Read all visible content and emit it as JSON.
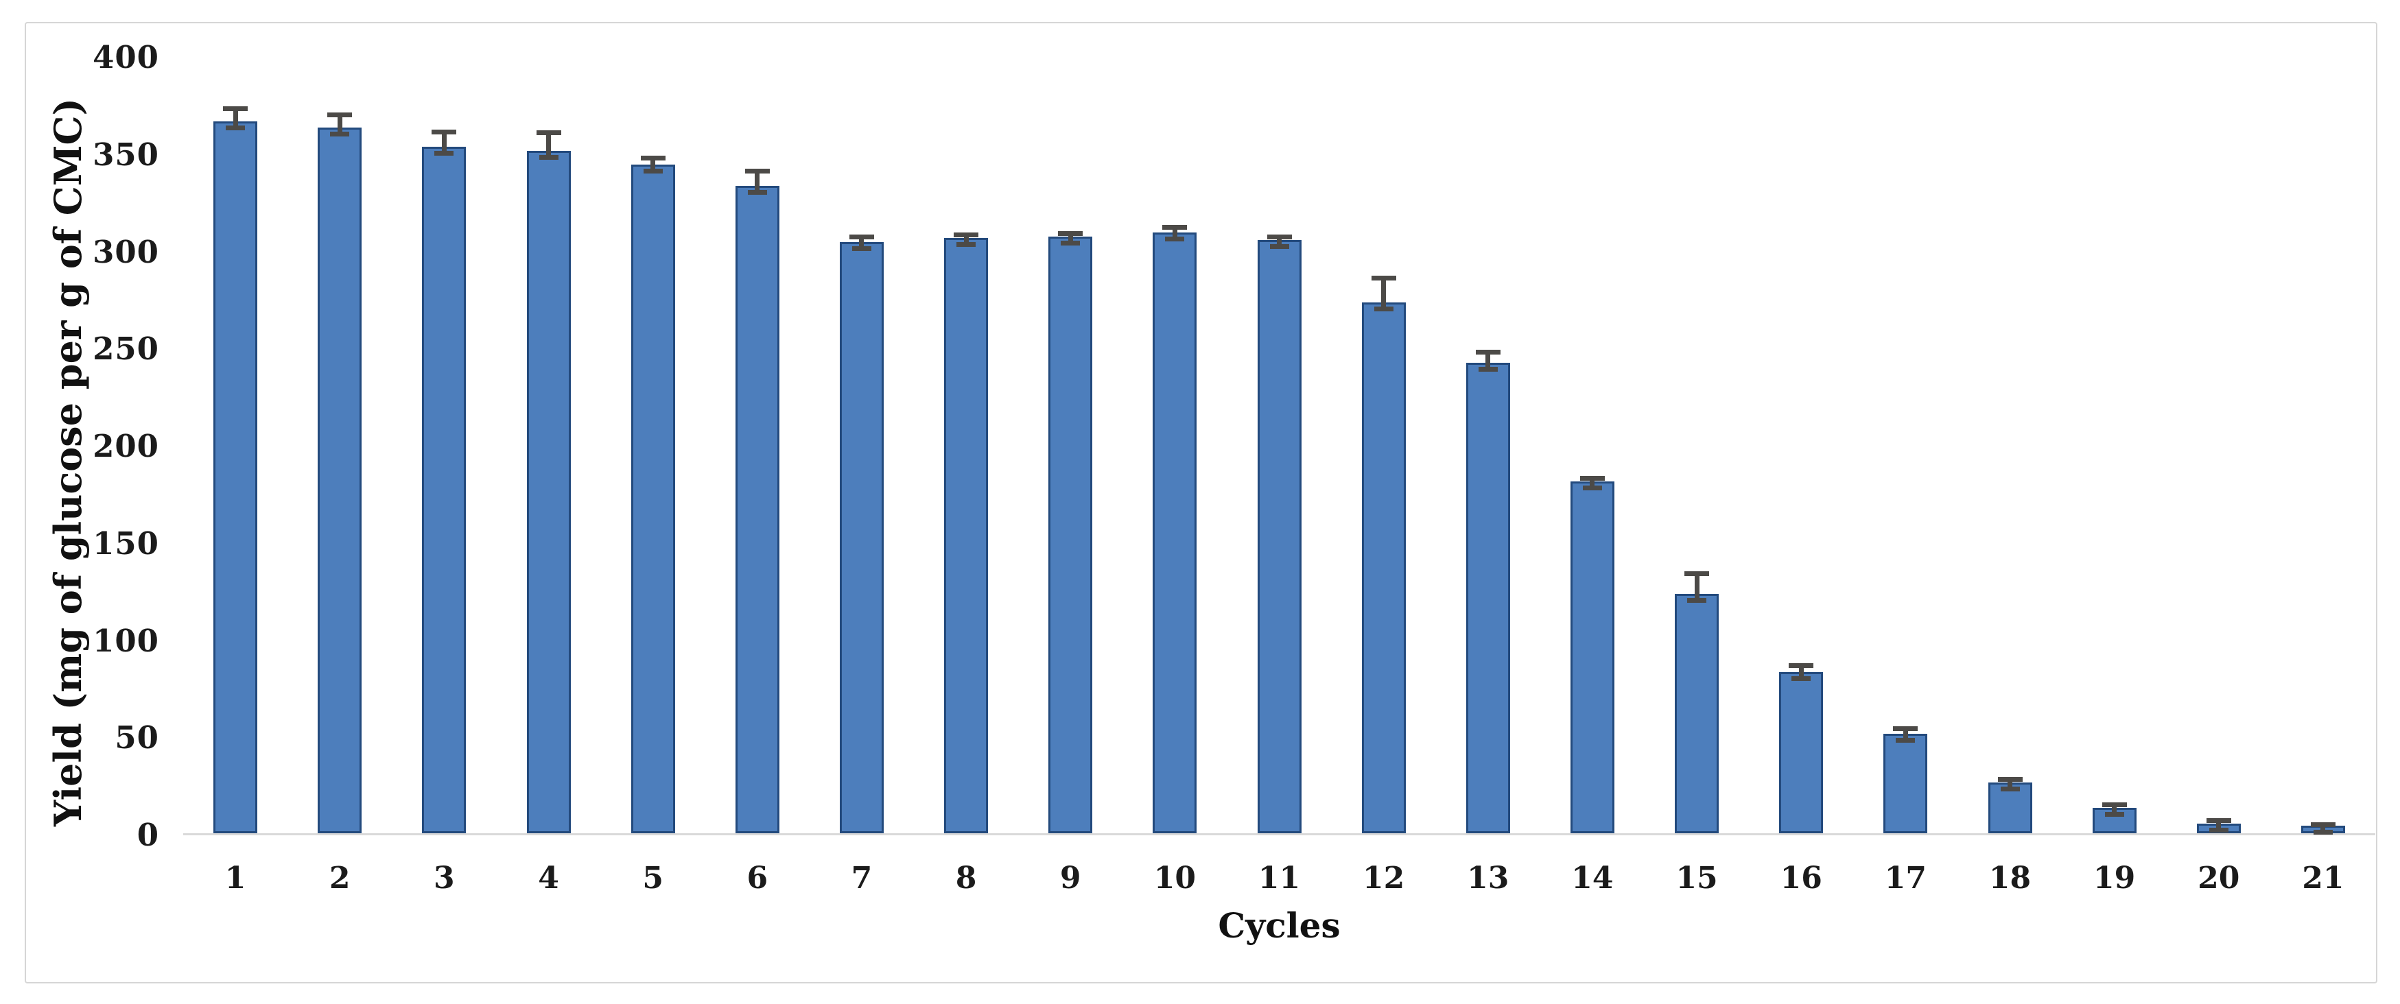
{
  "figure": {
    "background": "#ffffff",
    "border_color": "#d6d6d6"
  },
  "chart_data": {
    "type": "bar",
    "title": "",
    "xlabel": "Cycles",
    "ylabel": "Yield (mg of glucose per g of CMC)",
    "categories": [
      "1",
      "2",
      "3",
      "4",
      "5",
      "6",
      "7",
      "8",
      "9",
      "10",
      "11",
      "12",
      "13",
      "14",
      "15",
      "16",
      "17",
      "18",
      "19",
      "20",
      "21"
    ],
    "values": [
      366,
      363,
      353,
      351,
      344,
      333,
      304,
      306,
      307,
      309,
      305,
      273,
      242,
      181,
      123,
      83,
      51,
      26,
      13,
      5,
      4
    ],
    "error_bars": [
      7,
      7,
      8,
      10,
      4,
      8,
      3,
      2,
      2,
      3,
      2,
      13,
      6,
      2,
      11,
      4,
      3,
      2,
      2,
      2,
      1
    ],
    "ylim": [
      0,
      400
    ],
    "yticks": [
      0,
      50,
      100,
      150,
      200,
      250,
      300,
      350,
      400
    ],
    "grid": false,
    "legend_position": "none",
    "bar_fill_color": "#4d7ebc",
    "bar_border_color": "#234a7d",
    "error_bar_color": "#4c4a47",
    "axis_line_color": "#d9d9d9",
    "tick_label_color": "#1b1b1b"
  }
}
